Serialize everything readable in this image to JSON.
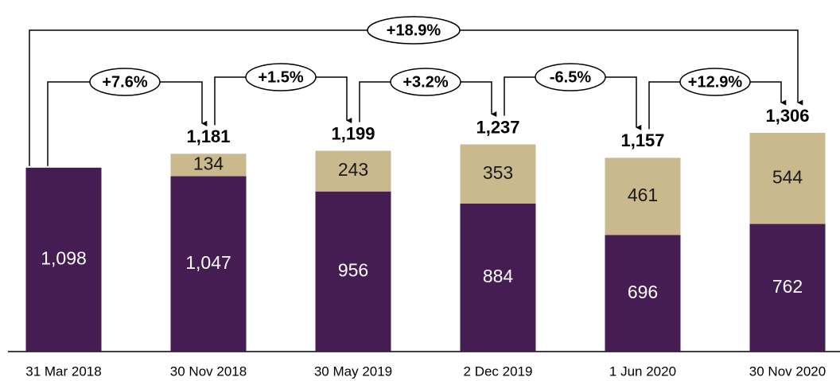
{
  "chart_data": {
    "type": "stacked_bar",
    "categories": [
      "31 Mar 2018",
      "30 Nov 2018",
      "30 May 2019",
      "2 Dec 2019",
      "1 Jun 2020",
      "30 Nov 2020"
    ],
    "series": [
      {
        "color": "#461d52",
        "values": [
          1098,
          1047,
          956,
          884,
          696,
          762
        ],
        "value_labels": [
          "1,098",
          "1,047",
          "956",
          "884",
          "696",
          "762"
        ]
      },
      {
        "color": "#c9b98c",
        "values": [
          null,
          134,
          243,
          353,
          461,
          544
        ]
      }
    ],
    "totals": [
      null,
      1181,
      1199,
      1237,
      1157,
      1306
    ],
    "total_labels": [
      null,
      "1,181",
      "1,199",
      "1,237",
      "1,157",
      "1,306"
    ],
    "changes": [
      "+7.6%",
      "+1.5%",
      "+3.2%",
      "-6.5%",
      "+12.9%"
    ],
    "overall_change": "+18.9%"
  }
}
